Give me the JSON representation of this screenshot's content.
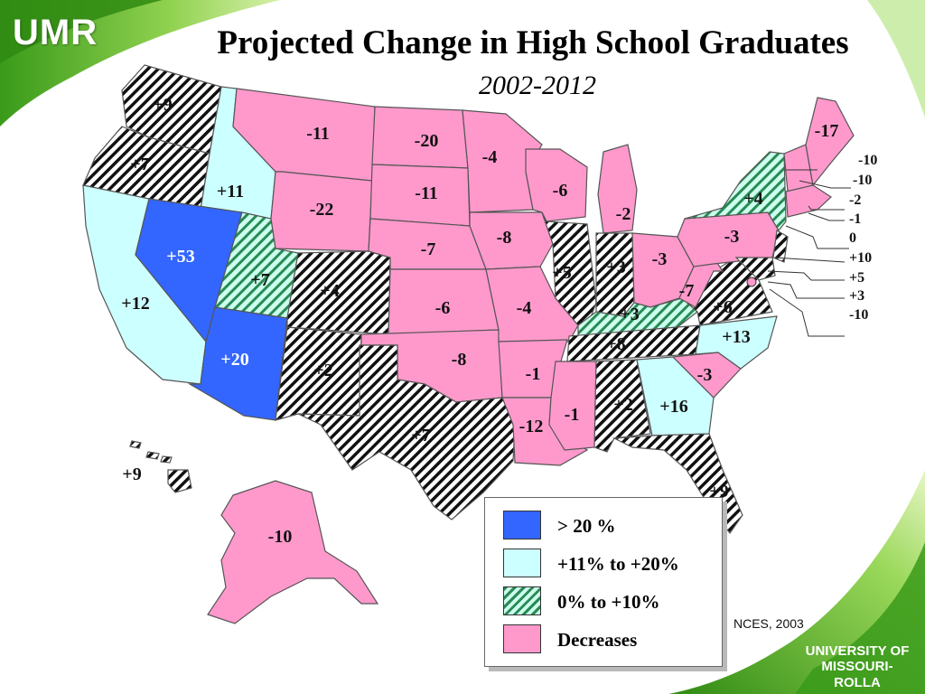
{
  "header": {
    "logo_text": "UMR",
    "title": "Projected Change in High School Graduates",
    "subtitle": "2002-2012"
  },
  "colors": {
    "over_20": "#3366ff",
    "plus_11_20": "#ccffff",
    "plus_0_10": "#99ddbb",
    "decreases": "#ff99cc",
    "hatch_black": "#111111",
    "green_swoosh": "#7ac943"
  },
  "states": {
    "WA": "+9",
    "OR": "+7",
    "ID": "+11",
    "MT": "-11",
    "ND": "-20",
    "MN": "-4",
    "WY": "-22",
    "SD": "-11",
    "WI": "-6",
    "MI": "-2",
    "NY": "+4",
    "ME": "-17",
    "CA": "+12",
    "NV": "+53",
    "UT": "+7",
    "CO": "+4",
    "NE": "-7",
    "IA": "-8",
    "IL": "+5",
    "IN": "+3",
    "OH": "-3",
    "PA": "-3",
    "WV": "-7",
    "VA": "+6",
    "KY": "+3",
    "AZ": "+20",
    "NM": "+2",
    "KS": "-6",
    "MO": "-4",
    "OK": "-8",
    "AR": "-1",
    "TN": "+8",
    "NC": "+13",
    "SC": "-3",
    "TX": "+7",
    "LA": "-12",
    "MS": "-1",
    "AL": "+2",
    "GA": "+16",
    "FL": "+9",
    "HI": "+9",
    "AK": "-10"
  },
  "northeast_callouts": [
    "-10",
    "-10",
    "-2",
    "-1",
    "0",
    "+10",
    "+5",
    "+3",
    "-10"
  ],
  "legend": {
    "items": [
      {
        "label": "> 20 %"
      },
      {
        "label": "+11% to +20%"
      },
      {
        "label": "0% to +10%"
      },
      {
        "label": "Decreases"
      }
    ]
  },
  "source": "NCES, 2003",
  "university": {
    "line1": "UNIVERSITY OF",
    "line2": "MISSOURI-ROLLA"
  }
}
